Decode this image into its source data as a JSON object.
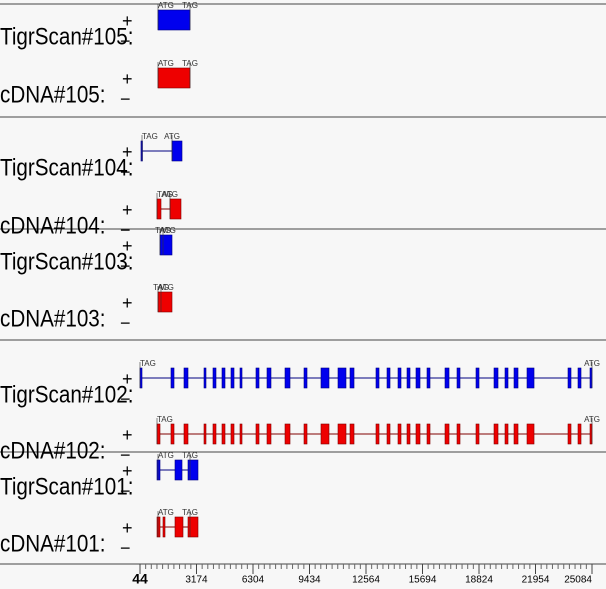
{
  "axis": {
    "xlim": [
      44,
      25084
    ],
    "xticks": [
      44,
      3174,
      6304,
      9434,
      12564,
      15694,
      18824,
      21954,
      25084
    ]
  },
  "strands": [
    "+",
    "−"
  ],
  "tracks": [
    {
      "label": "TigrScan#105:",
      "color": "#0000ee",
      "exons": [
        [
          1041,
          2814
        ]
      ],
      "flags": [
        {
          "text": "ATG",
          "pos": 1041
        },
        {
          "text": "TAG",
          "pos": 2814
        }
      ]
    },
    {
      "label": "cDNA#105:",
      "color": "#ee0000",
      "exons": [
        [
          1041,
          2814
        ]
      ],
      "flags": [
        {
          "text": "ATG",
          "pos": 1041
        },
        {
          "text": "TAG",
          "pos": 2814
        }
      ]
    },
    {
      "label": "TigrScan#104:",
      "color": "#0000ee",
      "exons": [
        [
          99,
          155
        ],
        [
          1817,
          2371
        ]
      ],
      "flags": [
        {
          "text": "TAG",
          "pos": 155
        },
        {
          "text": "ATG",
          "pos": 1817
        }
      ]
    },
    {
      "label": "cDNA#104:",
      "color": "#ee0000",
      "exons": [
        [
          986,
          1207
        ],
        [
          1706,
          2315
        ]
      ],
      "flags": [
        {
          "text": "TAG",
          "pos": 986
        },
        {
          "text": "ATG",
          "pos": 1706
        }
      ]
    },
    {
      "label": "TigrScan#103:",
      "color": "#0000ee",
      "exons": [
        [
          1152,
          1817
        ]
      ],
      "flags": [
        {
          "text": "ATG",
          "pos": 1152
        },
        {
          "text": "TAG",
          "pos": 1318
        }
      ]
    },
    {
      "label": "cDNA#103:",
      "color": "#ee0000",
      "exons": [
        [
          1041,
          1817
        ]
      ],
      "flags": [
        {
          "text": "ATG",
          "pos": 1041
        },
        {
          "text": "TAG",
          "pos": 1207
        }
      ]
    },
    {
      "label": "TigrScan#102:",
      "color": "#0000ee",
      "exons": [
        [
          44,
          155
        ],
        [
          1761,
          1928
        ],
        [
          2482,
          2703
        ],
        [
          3590,
          3700
        ],
        [
          4088,
          4254
        ],
        [
          4587,
          4753
        ],
        [
          5085,
          5252
        ],
        [
          5584,
          5695
        ],
        [
          6470,
          6637
        ],
        [
          7080,
          7301
        ],
        [
          8077,
          8354
        ],
        [
          9130,
          9296
        ],
        [
          10071,
          10514
        ],
        [
          11013,
          11456
        ],
        [
          11678,
          11900
        ],
        [
          13118,
          13285
        ],
        [
          13728,
          13894
        ],
        [
          14337,
          14503
        ],
        [
          14836,
          15002
        ],
        [
          15334,
          15556
        ],
        [
          15944,
          16110
        ],
        [
          16941,
          17163
        ],
        [
          17606,
          17772
        ],
        [
          18658,
          18825
        ],
        [
          19656,
          19877
        ],
        [
          20265,
          20431
        ],
        [
          20764,
          20985
        ],
        [
          21484,
          21872
        ],
        [
          23755,
          23921
        ],
        [
          24309,
          24475
        ],
        [
          24974,
          25084
        ]
      ],
      "flags": [
        {
          "text": "TAG",
          "pos": 44
        },
        {
          "text": "ATG",
          "pos": 25084
        }
      ]
    },
    {
      "label": "cDNA#102:",
      "color": "#ee0000",
      "exons": [
        [
          986,
          1152
        ],
        [
          1761,
          1928
        ],
        [
          2482,
          2703
        ],
        [
          3590,
          3700
        ],
        [
          4088,
          4254
        ],
        [
          4587,
          4753
        ],
        [
          5085,
          5252
        ],
        [
          5584,
          5695
        ],
        [
          6470,
          6637
        ],
        [
          7080,
          7301
        ],
        [
          8077,
          8354
        ],
        [
          9130,
          9296
        ],
        [
          10071,
          10514
        ],
        [
          11013,
          11456
        ],
        [
          11678,
          11900
        ],
        [
          13118,
          13285
        ],
        [
          13728,
          13894
        ],
        [
          14337,
          14503
        ],
        [
          14836,
          15002
        ],
        [
          15334,
          15556
        ],
        [
          15944,
          16110
        ],
        [
          16941,
          17163
        ],
        [
          17606,
          17772
        ],
        [
          18658,
          18825
        ],
        [
          19656,
          19877
        ],
        [
          20265,
          20431
        ],
        [
          20764,
          20985
        ],
        [
          21484,
          21872
        ],
        [
          23755,
          23921
        ],
        [
          24309,
          24475
        ],
        [
          24974,
          25084
        ]
      ],
      "flags": [
        {
          "text": "TAG",
          "pos": 986
        },
        {
          "text": "ATG",
          "pos": 25084
        }
      ]
    },
    {
      "label": "TigrScan#101:",
      "color": "#0000ee",
      "exons": [
        [
          986,
          1152
        ],
        [
          1983,
          2371
        ],
        [
          2703,
          3257
        ]
      ],
      "flags": [
        {
          "text": "ATG",
          "pos": 1041
        },
        {
          "text": "TAG",
          "pos": 2814
        }
      ]
    },
    {
      "label": "cDNA#101:",
      "color": "#ee0000",
      "exons": [
        [
          986,
          1152
        ],
        [
          1318,
          1429
        ],
        [
          1983,
          2426
        ],
        [
          2703,
          3257
        ]
      ],
      "flags": [
        {
          "text": "ATG",
          "pos": 1041
        },
        {
          "text": "TAG",
          "pos": 2814
        }
      ]
    }
  ]
}
